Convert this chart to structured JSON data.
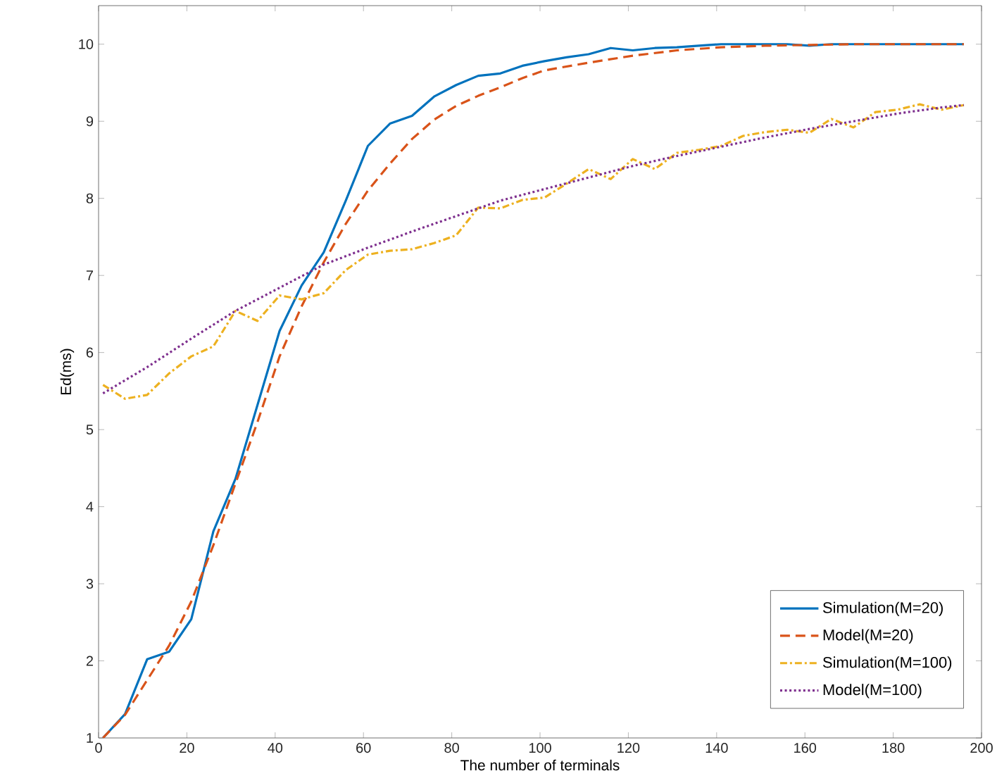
{
  "chart_data": {
    "type": "line",
    "xlabel": "The number of terminals",
    "ylabel": "Ed(ms)",
    "xlim": [
      0,
      200
    ],
    "ylim": [
      1,
      10.5
    ],
    "xticks": [
      0,
      20,
      40,
      60,
      80,
      100,
      120,
      140,
      160,
      180,
      200
    ],
    "yticks": [
      1,
      2,
      3,
      4,
      5,
      6,
      7,
      8,
      9,
      10
    ],
    "grid": false,
    "legend": "bottom right",
    "marker": "none",
    "series": [
      {
        "name": "Simulation(M=20)",
        "color": "#0072bd",
        "line_style": "solid",
        "x": [
          1,
          6,
          11,
          16,
          21,
          26,
          31,
          36,
          41,
          46,
          51,
          56,
          61,
          66,
          71,
          76,
          81,
          86,
          91,
          96,
          101,
          106,
          111,
          116,
          121,
          126,
          131,
          136,
          141,
          146,
          151,
          156,
          161,
          166,
          171,
          176,
          181,
          186,
          191,
          196
        ],
        "values": [
          1.0,
          1.31,
          2.02,
          2.12,
          2.54,
          3.68,
          4.36,
          5.32,
          6.28,
          6.87,
          7.3,
          7.97,
          8.68,
          8.97,
          9.07,
          9.32,
          9.47,
          9.59,
          9.62,
          9.72,
          9.78,
          9.83,
          9.87,
          9.95,
          9.92,
          9.95,
          9.96,
          9.98,
          10.0,
          10.0,
          10.0,
          10.0,
          9.98,
          10.0,
          10.0,
          10.0,
          10.0,
          10.0,
          10.0,
          10.0
        ]
      },
      {
        "name": "Model(M=20)",
        "color": "#d95319",
        "line_style": "dashed",
        "x": [
          1,
          6,
          11,
          16,
          21,
          26,
          31,
          36,
          41,
          46,
          51,
          56,
          61,
          66,
          71,
          76,
          81,
          86,
          91,
          96,
          101,
          111,
          121,
          131,
          141,
          151,
          161,
          171,
          181,
          196
        ],
        "values": [
          1.0,
          1.3,
          1.75,
          2.2,
          2.77,
          3.5,
          4.3,
          5.1,
          5.95,
          6.6,
          7.17,
          7.67,
          8.1,
          8.45,
          8.77,
          9.02,
          9.2,
          9.33,
          9.44,
          9.56,
          9.66,
          9.76,
          9.85,
          9.92,
          9.96,
          9.98,
          9.99,
          10.0,
          10.0,
          10.0
        ]
      },
      {
        "name": "Simulation(M=100)",
        "color": "#edb120",
        "line_style": "dashdot",
        "x": [
          1,
          6,
          11,
          16,
          21,
          26,
          31,
          36,
          41,
          46,
          51,
          56,
          61,
          66,
          71,
          76,
          81,
          86,
          91,
          96,
          101,
          106,
          111,
          116,
          121,
          126,
          131,
          136,
          141,
          146,
          151,
          156,
          161,
          166,
          171,
          176,
          181,
          186,
          191,
          196
        ],
        "values": [
          5.58,
          5.4,
          5.45,
          5.73,
          5.95,
          6.08,
          6.54,
          6.41,
          6.74,
          6.69,
          6.77,
          7.07,
          7.27,
          7.32,
          7.34,
          7.42,
          7.52,
          7.88,
          7.87,
          7.98,
          8.01,
          8.19,
          8.38,
          8.25,
          8.51,
          8.38,
          8.59,
          8.63,
          8.68,
          8.81,
          8.86,
          8.89,
          8.85,
          9.03,
          8.92,
          9.12,
          9.15,
          9.22,
          9.15,
          9.21
        ]
      },
      {
        "name": "Model(M=100)",
        "color": "#7e2f8e",
        "line_style": "dotted",
        "x": [
          1,
          11,
          21,
          31,
          41,
          51,
          61,
          71,
          81,
          91,
          101,
          111,
          121,
          131,
          141,
          151,
          161,
          171,
          181,
          191,
          196
        ],
        "values": [
          5.47,
          5.81,
          6.18,
          6.54,
          6.84,
          7.14,
          7.36,
          7.57,
          7.77,
          7.97,
          8.12,
          8.27,
          8.42,
          8.55,
          8.67,
          8.79,
          8.9,
          9.0,
          9.1,
          9.18,
          9.21
        ]
      }
    ]
  }
}
